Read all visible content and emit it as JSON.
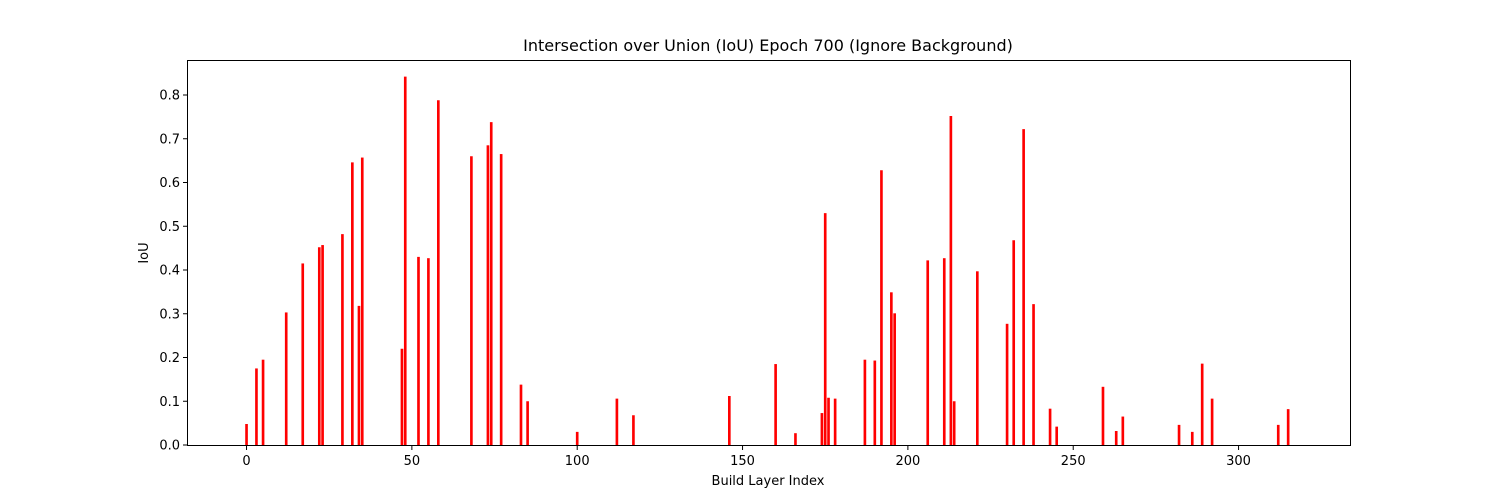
{
  "chart_data": {
    "type": "bar",
    "title": "Intersection over Union (IoU) Epoch 700 (Ignore Background)",
    "xlabel": "Build Layer Index",
    "ylabel": "IoU",
    "xlim": [
      -17.7,
      333.7
    ],
    "ylim": [
      0,
      0.88
    ],
    "xticks": [
      0,
      50,
      100,
      150,
      200,
      250,
      300
    ],
    "yticks": [
      0.0,
      0.1,
      0.2,
      0.3,
      0.4,
      0.5,
      0.6,
      0.7,
      0.8
    ],
    "ytick_labels": [
      "0.0",
      "0.1",
      "0.2",
      "0.3",
      "0.4",
      "0.5",
      "0.6",
      "0.7",
      "0.8"
    ],
    "bar_color": "#ff0000",
    "grid": false,
    "series": [
      {
        "x": [
          0,
          3,
          5,
          12,
          17,
          22,
          23,
          29,
          32,
          34,
          35,
          47,
          48,
          52,
          55,
          58,
          68,
          73,
          74,
          77,
          83,
          85,
          100,
          112,
          117,
          146,
          160,
          166,
          174,
          175,
          176,
          178,
          187,
          190,
          192,
          195,
          196,
          206,
          211,
          213,
          214,
          221,
          230,
          232,
          235,
          238,
          243,
          245,
          259,
          263,
          265,
          282,
          286,
          289,
          292,
          312,
          315
        ],
        "values": [
          0.048,
          0.175,
          0.195,
          0.303,
          0.415,
          0.452,
          0.457,
          0.482,
          0.646,
          0.318,
          0.657,
          0.22,
          0.842,
          0.43,
          0.427,
          0.788,
          0.66,
          0.685,
          0.738,
          0.665,
          0.138,
          0.1,
          0.03,
          0.106,
          0.068,
          0.112,
          0.185,
          0.027,
          0.073,
          0.53,
          0.108,
          0.106,
          0.195,
          0.193,
          0.628,
          0.349,
          0.301,
          0.422,
          0.427,
          0.752,
          0.1,
          0.397,
          0.277,
          0.468,
          0.722,
          0.322,
          0.083,
          0.042,
          0.133,
          0.032,
          0.065,
          0.046,
          0.03,
          0.186,
          0.106,
          0.046,
          0.082
        ]
      }
    ]
  }
}
